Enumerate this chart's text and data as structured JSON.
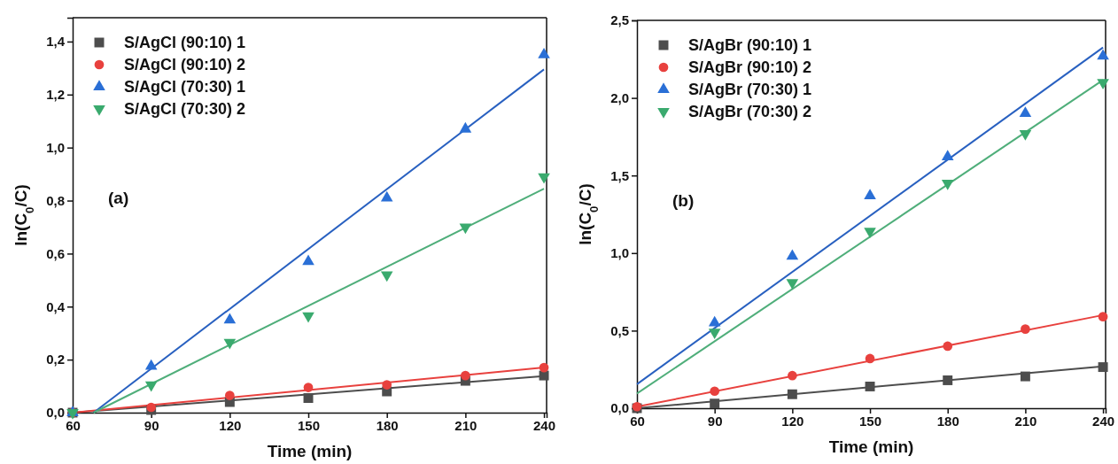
{
  "chart_data": [
    {
      "type": "scatter",
      "xlabel": "Time (min)",
      "ylabel": "ln(C$_{0}$/C)",
      "annotations": [
        "(a)"
      ],
      "legend": "top left",
      "grid": false,
      "xlim": [
        60,
        241
      ],
      "xticks": [
        60,
        90,
        120,
        150,
        180,
        210,
        240
      ],
      "ylim": [
        0,
        1.49
      ],
      "yticks": [
        {
          "value": 0,
          "label": "0,0"
        },
        {
          "value": 0.2,
          "label": "0,2"
        },
        {
          "value": 0.4,
          "label": "0,4"
        },
        {
          "value": 0.6,
          "label": "0,6"
        },
        {
          "value": 0.8,
          "label": "0,8"
        },
        {
          "value": 1.0,
          "label": "1,0"
        },
        {
          "value": 1.2,
          "label": "1,2"
        },
        {
          "value": 1.4,
          "label": "1,4"
        }
      ],
      "series": [
        {
          "name": "S/AgCl (90:10) 1",
          "marker": "square",
          "color": "#4d4d4d",
          "x": [
            60,
            90,
            120,
            150,
            180,
            210,
            240
          ],
          "values": [
            0,
            0.01,
            0.04,
            0.055,
            0.08,
            0.12,
            0.14
          ]
        },
        {
          "name": "S/AgCl (90:10) 2",
          "marker": "circle",
          "color": "#e8413e",
          "x": [
            60,
            90,
            120,
            150,
            180,
            210,
            240
          ],
          "values": [
            0,
            0.02,
            0.065,
            0.095,
            0.105,
            0.14,
            0.17
          ]
        },
        {
          "name": "S/AgCl (70:30) 1",
          "marker": "triangle",
          "color": "#2a6fd6",
          "x": [
            60,
            90,
            120,
            150,
            180,
            210,
            240
          ],
          "values": [
            0,
            0.175,
            0.35,
            0.57,
            0.81,
            1.07,
            1.35
          ]
        },
        {
          "name": "S/AgCl (70:30) 2",
          "marker": "triangle-down",
          "color": "#3aaa6e",
          "x": [
            60,
            90,
            120,
            150,
            180,
            210,
            240
          ],
          "values": [
            0,
            0.105,
            0.265,
            0.365,
            0.52,
            0.7,
            0.89
          ]
        },
        {
          "type": "line",
          "marker": "none",
          "color": "#4d4d4d",
          "x": [
            60,
            240
          ],
          "values": [
            0,
            0.138
          ]
        },
        {
          "type": "line",
          "marker": "none",
          "color": "#e8413e",
          "x": [
            60,
            240
          ],
          "values": [
            0,
            0.17
          ]
        },
        {
          "type": "line",
          "marker": "none",
          "color": "#2860c0",
          "x": [
            68,
            240
          ],
          "values": [
            0,
            1.295
          ]
        },
        {
          "type": "line",
          "marker": "none",
          "color": "#4fae7a",
          "x": [
            68,
            240
          ],
          "values": [
            0,
            0.845
          ]
        }
      ]
    },
    {
      "type": "scatter",
      "xlabel": "Time (min)",
      "ylabel": "ln(C$_{0}$/C)",
      "annotations": [
        "(b)"
      ],
      "legend": "top left",
      "grid": false,
      "xlim": [
        60,
        241
      ],
      "xticks": [
        60,
        90,
        120,
        150,
        180,
        210,
        240
      ],
      "ylim": [
        0,
        2.5
      ],
      "yticks": [
        {
          "value": 0,
          "label": "0,0"
        },
        {
          "value": 0.5,
          "label": "0,5"
        },
        {
          "value": 1.0,
          "label": "1,0"
        },
        {
          "value": 1.5,
          "label": "1,5"
        },
        {
          "value": 2.0,
          "label": "2,0"
        },
        {
          "value": 2.5,
          "label": "2,5"
        }
      ],
      "series": [
        {
          "name": "S/AgBr (90:10) 1",
          "marker": "square",
          "color": "#4d4d4d",
          "x": [
            60,
            90,
            120,
            150,
            180,
            210,
            240
          ],
          "values": [
            0,
            0.03,
            0.09,
            0.14,
            0.18,
            0.205,
            0.265
          ]
        },
        {
          "name": "S/AgBr (90:10) 2",
          "marker": "circle",
          "color": "#e8413e",
          "x": [
            60,
            90,
            120,
            150,
            180,
            210,
            240
          ],
          "values": [
            0.01,
            0.11,
            0.21,
            0.32,
            0.4,
            0.51,
            0.59
          ]
        },
        {
          "name": "S/AgBr (70:30) 1",
          "marker": "triangle",
          "color": "#2a6fd6",
          "x": [
            90,
            120,
            150,
            180,
            210,
            240
          ],
          "values": [
            0.55,
            0.98,
            1.37,
            1.62,
            1.9,
            2.27
          ]
        },
        {
          "name": "S/AgBr (70:30) 2",
          "marker": "triangle-down",
          "color": "#3aaa6e",
          "x": [
            90,
            120,
            150,
            180,
            210,
            240
          ],
          "values": [
            0.49,
            0.81,
            1.14,
            1.45,
            1.77,
            2.1
          ]
        },
        {
          "type": "line",
          "marker": "none",
          "color": "#4d4d4d",
          "x": [
            60,
            240
          ],
          "values": [
            0,
            0.27
          ]
        },
        {
          "type": "line",
          "marker": "none",
          "color": "#e8413e",
          "x": [
            60,
            240
          ],
          "values": [
            0.01,
            0.6
          ]
        },
        {
          "type": "line",
          "marker": "none",
          "color": "#2860c0",
          "x": [
            60,
            240
          ],
          "values": [
            0.155,
            2.325
          ]
        },
        {
          "type": "line",
          "marker": "none",
          "color": "#4fae7a",
          "x": [
            60,
            240
          ],
          "values": [
            0.095,
            2.115
          ]
        }
      ]
    }
  ]
}
